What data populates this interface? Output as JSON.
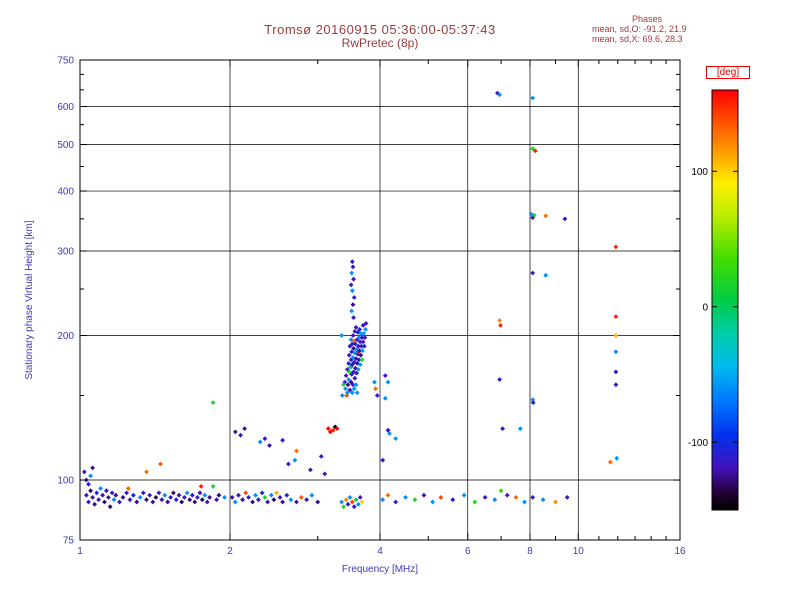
{
  "header": {
    "title": "Tromsø 20160915 05:36:00-05:37:43",
    "subtitle": "RwPretec (8p)"
  },
  "stats": {
    "header": "Phases",
    "line_o": "mean, sd,O: -91.2, 21.9",
    "line_x": "mean, sd,X:  69.6, 28.3"
  },
  "colors": {
    "title_text": "#9b3b3b",
    "axis_text": "#3b3bbb",
    "frame": "#000000",
    "deg_label": "#ee0000",
    "background": "#ffffff"
  },
  "chart_data": {
    "type": "scatter",
    "title": "Tromsø 20160915 05:36:00-05:37:43",
    "subtitle": "RwPretec (8p)",
    "xlabel": "Frequency [MHz]",
    "ylabel": "Stationary phase Virtual Height [km]",
    "xscale": "log",
    "yscale": "log",
    "xlim": [
      1,
      16
    ],
    "ylim": [
      75,
      750
    ],
    "xticks": [
      1,
      2,
      4,
      6,
      8,
      10,
      16
    ],
    "xminor": [
      3,
      5,
      7,
      9,
      11,
      12,
      13,
      14,
      15
    ],
    "yticks": [
      75,
      100,
      200,
      300,
      400,
      500,
      600,
      750
    ],
    "yminor": [
      150,
      250,
      350,
      450,
      550,
      650,
      700
    ],
    "grid_x": [
      2,
      4,
      6,
      8,
      10
    ],
    "grid_y": [
      100,
      200,
      300,
      400,
      500,
      600
    ],
    "grid_on": true,
    "legend_position": "none",
    "colorbar": {
      "label": "[deg]",
      "ticks": [
        100,
        0,
        -100
      ],
      "vmin": -150,
      "vmax": 160,
      "stops": [
        [
          0.0,
          "#ff0000"
        ],
        [
          0.08,
          "#ff5500"
        ],
        [
          0.16,
          "#ffaa00"
        ],
        [
          0.22,
          "#ffee00"
        ],
        [
          0.3,
          "#bbee00"
        ],
        [
          0.4,
          "#44dd00"
        ],
        [
          0.5,
          "#00cc44"
        ],
        [
          0.58,
          "#00ccaa"
        ],
        [
          0.66,
          "#00bbee"
        ],
        [
          0.74,
          "#0077ff"
        ],
        [
          0.82,
          "#0033ee"
        ],
        [
          0.9,
          "#4411bb"
        ],
        [
          0.96,
          "#220033"
        ],
        [
          1.0,
          "#000000"
        ]
      ]
    },
    "points_format": [
      "frequency_MHz",
      "virtual_height_km",
      "phase_deg"
    ],
    "points": [
      [
        1.02,
        104,
        -115
      ],
      [
        1.03,
        100,
        -120
      ],
      [
        1.04,
        98,
        -110
      ],
      [
        1.05,
        102,
        -60
      ],
      [
        1.06,
        106,
        -125
      ],
      [
        1.03,
        93,
        -120
      ],
      [
        1.04,
        90,
        -112
      ],
      [
        1.05,
        95,
        -130
      ],
      [
        1.06,
        92,
        -116
      ],
      [
        1.07,
        89,
        -124
      ],
      [
        1.08,
        94,
        -106
      ],
      [
        1.09,
        91,
        -120
      ],
      [
        1.1,
        96,
        -60
      ],
      [
        1.11,
        93,
        -118
      ],
      [
        1.12,
        90,
        -128
      ],
      [
        1.13,
        95,
        -112
      ],
      [
        1.14,
        92,
        -122
      ],
      [
        1.15,
        88,
        -132
      ],
      [
        1.16,
        94,
        -108
      ],
      [
        1.17,
        91,
        -60
      ],
      [
        1.18,
        93,
        -125
      ],
      [
        1.2,
        90,
        -115
      ],
      [
        1.22,
        92,
        -130
      ],
      [
        1.24,
        94,
        -110
      ],
      [
        1.25,
        96,
        130
      ],
      [
        1.26,
        91,
        -120
      ],
      [
        1.28,
        93,
        -106
      ],
      [
        1.3,
        90,
        -125
      ],
      [
        1.32,
        92,
        -60
      ],
      [
        1.34,
        94,
        -115
      ],
      [
        1.36,
        104,
        130
      ],
      [
        1.36,
        91,
        -128
      ],
      [
        1.38,
        93,
        -110
      ],
      [
        1.4,
        90,
        -122
      ],
      [
        1.42,
        92,
        -132
      ],
      [
        1.44,
        94,
        -108
      ],
      [
        1.45,
        108,
        135
      ],
      [
        1.46,
        91,
        -118
      ],
      [
        1.48,
        93,
        -60
      ],
      [
        1.5,
        90,
        -125
      ],
      [
        1.52,
        92,
        -112
      ],
      [
        1.54,
        94,
        -128
      ],
      [
        1.56,
        91,
        -106
      ],
      [
        1.58,
        93,
        -120
      ],
      [
        1.6,
        90,
        -130
      ],
      [
        1.62,
        92,
        -110
      ],
      [
        1.64,
        94,
        -60
      ],
      [
        1.66,
        91,
        -125
      ],
      [
        1.68,
        93,
        -115
      ],
      [
        1.7,
        90,
        -128
      ],
      [
        1.72,
        92,
        -108
      ],
      [
        1.74,
        94,
        -120
      ],
      [
        1.75,
        97,
        150
      ],
      [
        1.76,
        91,
        -132
      ],
      [
        1.78,
        93,
        -60
      ],
      [
        1.8,
        90,
        -112
      ],
      [
        1.82,
        92,
        -125
      ],
      [
        1.85,
        97,
        20
      ],
      [
        1.85,
        145,
        20
      ],
      [
        1.88,
        91,
        -118
      ],
      [
        1.9,
        93,
        -130
      ],
      [
        1.95,
        92,
        -60
      ],
      [
        2.02,
        92,
        -120
      ],
      [
        2.05,
        90,
        -60
      ],
      [
        2.05,
        126,
        -120
      ],
      [
        2.08,
        93,
        -115
      ],
      [
        2.1,
        124,
        -115
      ],
      [
        2.12,
        91,
        -125
      ],
      [
        2.14,
        128,
        -122
      ],
      [
        2.15,
        94,
        140
      ],
      [
        2.18,
        92,
        -110
      ],
      [
        2.22,
        90,
        -128
      ],
      [
        2.25,
        93,
        -60
      ],
      [
        2.28,
        91,
        -118
      ],
      [
        2.3,
        120,
        -60
      ],
      [
        2.32,
        94,
        -106
      ],
      [
        2.35,
        122,
        -115
      ],
      [
        2.35,
        92,
        20
      ],
      [
        2.38,
        90,
        -122
      ],
      [
        2.4,
        118,
        -120
      ],
      [
        2.42,
        93,
        -60
      ],
      [
        2.45,
        91,
        -130
      ],
      [
        2.48,
        94,
        110
      ],
      [
        2.52,
        92,
        -115
      ],
      [
        2.55,
        121,
        -110
      ],
      [
        2.55,
        90,
        -125
      ],
      [
        2.6,
        93,
        -108
      ],
      [
        2.62,
        108,
        -115
      ],
      [
        2.65,
        91,
        -60
      ],
      [
        2.7,
        110,
        -60
      ],
      [
        2.72,
        115,
        130
      ],
      [
        2.72,
        90,
        -120
      ],
      [
        2.78,
        92,
        135
      ],
      [
        2.85,
        91,
        -115
      ],
      [
        2.9,
        105,
        -120
      ],
      [
        2.92,
        93,
        -60
      ],
      [
        3.0,
        90,
        -125
      ],
      [
        3.05,
        112,
        -115
      ],
      [
        3.1,
        103,
        -120
      ],
      [
        3.15,
        128,
        160
      ],
      [
        3.18,
        126,
        170
      ],
      [
        3.22,
        127,
        150
      ],
      [
        3.25,
        129,
        -170
      ],
      [
        3.28,
        128,
        165
      ],
      [
        3.35,
        90,
        -60
      ],
      [
        3.38,
        88,
        20
      ],
      [
        3.42,
        91,
        120
      ],
      [
        3.45,
        89,
        -110
      ],
      [
        3.48,
        92,
        -60
      ],
      [
        3.52,
        90,
        140
      ],
      [
        3.55,
        88,
        -115
      ],
      [
        3.58,
        91,
        0
      ],
      [
        3.62,
        89,
        -60
      ],
      [
        3.65,
        92,
        -120
      ],
      [
        3.68,
        90,
        100
      ],
      [
        4.05,
        91,
        -60
      ],
      [
        4.15,
        93,
        130
      ],
      [
        4.3,
        90,
        -115
      ],
      [
        4.5,
        92,
        -60
      ],
      [
        4.7,
        91,
        20
      ],
      [
        4.9,
        93,
        -120
      ],
      [
        5.1,
        90,
        -60
      ],
      [
        5.3,
        92,
        140
      ],
      [
        5.6,
        91,
        -112
      ],
      [
        5.9,
        93,
        -60
      ],
      [
        6.2,
        90,
        20
      ],
      [
        6.5,
        92,
        -120
      ],
      [
        6.8,
        91,
        -60
      ],
      [
        7.0,
        95,
        30
      ],
      [
        7.2,
        93,
        -115
      ],
      [
        7.5,
        92,
        130
      ],
      [
        7.8,
        90,
        -60
      ],
      [
        8.1,
        92,
        -120
      ],
      [
        8.5,
        91,
        -60
      ],
      [
        9.0,
        90,
        120
      ],
      [
        9.5,
        92,
        -110
      ],
      [
        3.4,
        160,
        -110
      ],
      [
        3.41,
        155,
        -60
      ],
      [
        3.42,
        165,
        -118
      ],
      [
        3.43,
        150,
        135
      ],
      [
        3.44,
        170,
        -112
      ],
      [
        3.44,
        152,
        -60
      ],
      [
        3.45,
        158,
        -125
      ],
      [
        3.46,
        175,
        -105
      ],
      [
        3.46,
        162,
        -60
      ],
      [
        3.47,
        182,
        -115
      ],
      [
        3.47,
        168,
        20
      ],
      [
        3.48,
        154,
        -120
      ],
      [
        3.48,
        190,
        -108
      ],
      [
        3.49,
        172,
        -60
      ],
      [
        3.5,
        160,
        -125
      ],
      [
        3.5,
        178,
        -112
      ],
      [
        3.5,
        196,
        -60
      ],
      [
        3.5,
        172,
        0
      ],
      [
        3.51,
        166,
        -118
      ],
      [
        3.51,
        185,
        -105
      ],
      [
        3.52,
        152,
        -60
      ],
      [
        3.52,
        174,
        -122
      ],
      [
        3.52,
        192,
        -110
      ],
      [
        3.53,
        158,
        -115
      ],
      [
        3.53,
        180,
        -60
      ],
      [
        3.53,
        200,
        -120
      ],
      [
        3.54,
        168,
        -108
      ],
      [
        3.54,
        188,
        -125
      ],
      [
        3.55,
        155,
        -60
      ],
      [
        3.55,
        176,
        -112
      ],
      [
        3.55,
        195,
        130
      ],
      [
        3.56,
        163,
        -118
      ],
      [
        3.56,
        184,
        -60
      ],
      [
        3.56,
        204,
        -110
      ],
      [
        3.57,
        171,
        -122
      ],
      [
        3.57,
        192,
        -105
      ],
      [
        3.58,
        158,
        -60
      ],
      [
        3.58,
        179,
        -115
      ],
      [
        3.58,
        208,
        -120
      ],
      [
        3.59,
        167,
        -108
      ],
      [
        3.59,
        187,
        -60
      ],
      [
        3.6,
        175,
        -125
      ],
      [
        3.6,
        196,
        -112
      ],
      [
        3.6,
        152,
        -60
      ],
      [
        3.61,
        183,
        -118
      ],
      [
        3.61,
        203,
        -105
      ],
      [
        3.62,
        170,
        -60
      ],
      [
        3.62,
        190,
        -120
      ],
      [
        3.62,
        185,
        150
      ],
      [
        3.63,
        178,
        -110
      ],
      [
        3.63,
        198,
        -60
      ],
      [
        3.64,
        186,
        -122
      ],
      [
        3.64,
        206,
        -108
      ],
      [
        3.65,
        174,
        -60
      ],
      [
        3.65,
        194,
        -115
      ],
      [
        3.66,
        182,
        -125
      ],
      [
        3.66,
        202,
        -60
      ],
      [
        3.67,
        190,
        -110
      ],
      [
        3.68,
        178,
        20
      ],
      [
        3.68,
        198,
        -118
      ],
      [
        3.69,
        186,
        -60
      ],
      [
        3.7,
        194,
        -112
      ],
      [
        3.7,
        210,
        -120
      ],
      [
        3.71,
        202,
        -60
      ],
      [
        3.72,
        190,
        -108
      ],
      [
        3.73,
        198,
        -115
      ],
      [
        3.74,
        206,
        -60
      ],
      [
        3.75,
        212,
        -118
      ],
      [
        3.5,
        255,
        -110
      ],
      [
        3.51,
        270,
        -60
      ],
      [
        3.51,
        225,
        -60
      ],
      [
        3.52,
        285,
        -112
      ],
      [
        3.52,
        248,
        -60
      ],
      [
        3.53,
        278,
        -116
      ],
      [
        3.53,
        232,
        -125
      ],
      [
        3.54,
        262,
        -120
      ],
      [
        3.54,
        218,
        -110
      ],
      [
        3.55,
        240,
        -115
      ],
      [
        3.36,
        150,
        -60
      ],
      [
        3.38,
        158,
        20
      ],
      [
        3.35,
        200,
        -60
      ],
      [
        3.9,
        160,
        -60
      ],
      [
        3.92,
        155,
        130
      ],
      [
        3.95,
        150,
        -115
      ],
      [
        4.1,
        148,
        -60
      ],
      [
        4.1,
        165,
        -115
      ],
      [
        4.15,
        160,
        -60
      ],
      [
        4.15,
        127,
        -115
      ],
      [
        4.18,
        125,
        -60
      ],
      [
        4.3,
        122,
        -60
      ],
      [
        4.05,
        110,
        -118
      ],
      [
        6.88,
        640,
        -115
      ],
      [
        6.95,
        635,
        -60
      ],
      [
        8.1,
        625,
        -60
      ],
      [
        8.1,
        490,
        20
      ],
      [
        8.2,
        485,
        150
      ],
      [
        8.05,
        358,
        -60
      ],
      [
        8.1,
        352,
        -115
      ],
      [
        8.16,
        356,
        20
      ],
      [
        8.6,
        355,
        130
      ],
      [
        9.4,
        350,
        -115
      ],
      [
        8.1,
        270,
        -115
      ],
      [
        8.6,
        267,
        -60
      ],
      [
        11.9,
        306,
        150
      ],
      [
        11.9,
        219,
        150
      ],
      [
        11.9,
        200,
        110
      ],
      [
        11.9,
        185,
        -60
      ],
      [
        11.9,
        168,
        -110
      ],
      [
        11.9,
        158,
        -120
      ],
      [
        11.6,
        109,
        130
      ],
      [
        11.95,
        111,
        -60
      ],
      [
        6.95,
        215,
        120
      ],
      [
        6.98,
        210,
        150
      ],
      [
        6.95,
        162,
        -115
      ],
      [
        7.65,
        128,
        -60
      ],
      [
        7.05,
        128,
        -115
      ],
      [
        8.1,
        147,
        -60
      ],
      [
        8.12,
        145,
        -115
      ]
    ]
  }
}
